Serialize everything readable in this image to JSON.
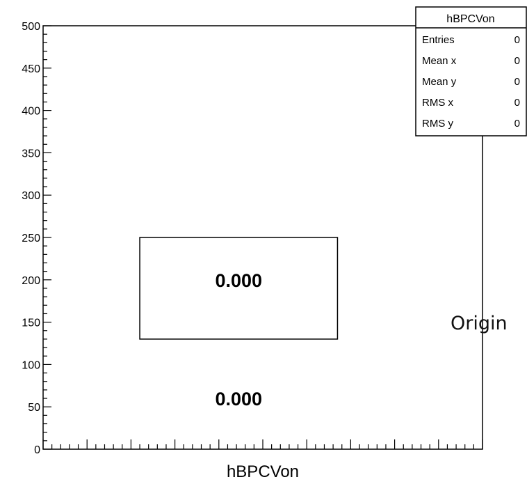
{
  "chart_data": {
    "type": "heatmap",
    "xlabel": "hBPCVon",
    "ylim": [
      0,
      500
    ],
    "y_ticks": [
      "0",
      "50",
      "100",
      "150",
      "200",
      "250",
      "300",
      "350",
      "400",
      "450",
      "500"
    ],
    "y_tick_values": [
      0,
      50,
      100,
      150,
      200,
      250,
      300,
      350,
      400,
      450,
      500
    ],
    "x_range": [
      0,
      10
    ],
    "x_major_ticks": [
      0,
      1,
      2,
      3,
      4,
      5,
      6,
      7,
      8,
      9,
      10
    ],
    "boxes": [
      {
        "x0": 2.2,
        "x1": 6.7,
        "y0": 130,
        "y1": 250
      }
    ],
    "bin_labels": [
      {
        "text": "0.000",
        "x": 4.45,
        "y": 190
      },
      {
        "text": "0.000",
        "x": 4.45,
        "y": 50
      }
    ],
    "stats_box": {
      "title": "hBPCVon",
      "rows": [
        {
          "label": "Entries",
          "value": "0"
        },
        {
          "label": "Mean x",
          "value": "0"
        },
        {
          "label": "Mean y",
          "value": "0"
        },
        {
          "label": "RMS x",
          "value": "0"
        },
        {
          "label": "RMS y",
          "value": "0"
        }
      ]
    },
    "grid": false,
    "legend": "none"
  },
  "side_text": "Origin"
}
